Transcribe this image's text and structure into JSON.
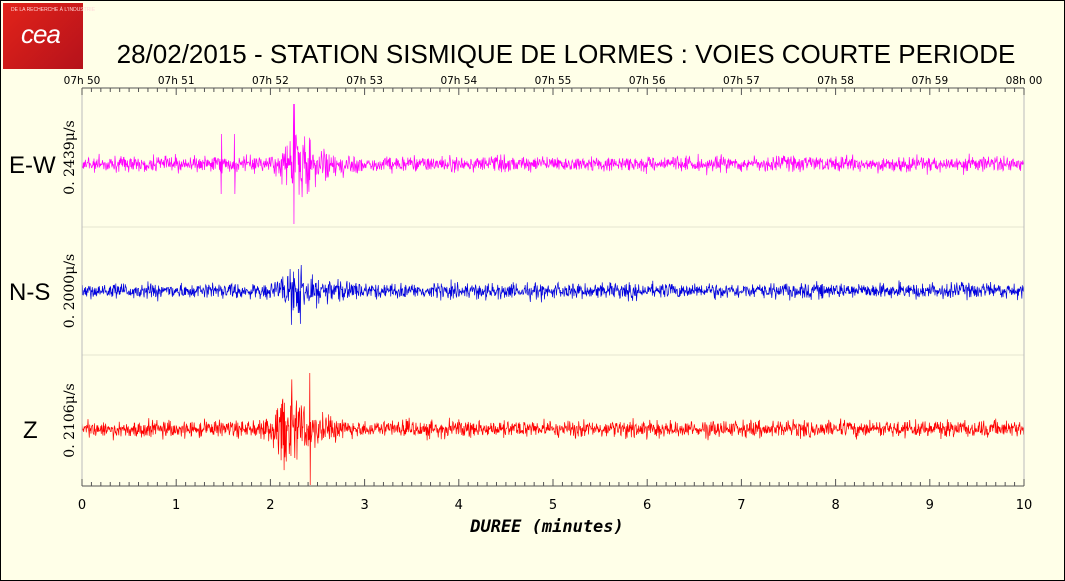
{
  "logo": {
    "name": "cea",
    "small_text": "DE LA RECHERCHE À L'INDUSTRIE"
  },
  "title": "28/02/2015  -  STATION SISMIQUE DE LORMES : VOIES COURTE PERIODE",
  "colors": {
    "background": "#ffffe8",
    "ew": "#ff00ff",
    "ns": "#0000dd",
    "z": "#ff0000"
  },
  "chart_data": {
    "type": "line",
    "title": "28/02/2015  -  STATION SISMIQUE DE LORMES : VOIES COURTE PERIODE",
    "xlabel": "DUREE (minutes)",
    "xlim": [
      0,
      10
    ],
    "x_ticks": [
      "0",
      "1",
      "2",
      "3",
      "4",
      "5",
      "6",
      "7",
      "8",
      "9",
      "10"
    ],
    "top_time_ticks": [
      "07h 50",
      "07h 51",
      "07h 52",
      "07h 53",
      "07h 54",
      "07h 55",
      "07h 56",
      "07h 57",
      "07h 58",
      "07h 59",
      "08h 00"
    ],
    "series": [
      {
        "name": "E-W",
        "amplitude_label": "0. 2439μ/s",
        "color": "#ff00ff",
        "event_minute": 2.3,
        "peak_minute": 2.25
      },
      {
        "name": "N-S",
        "amplitude_label": "0. 2000μ/s",
        "color": "#0000dd",
        "event_minute": 2.3,
        "peak_minute": 2.3
      },
      {
        "name": "Z",
        "amplitude_label": "0. 2106μ/s",
        "color": "#ff0000",
        "event_minute": 2.2,
        "peak_minute": 2.42
      }
    ]
  }
}
